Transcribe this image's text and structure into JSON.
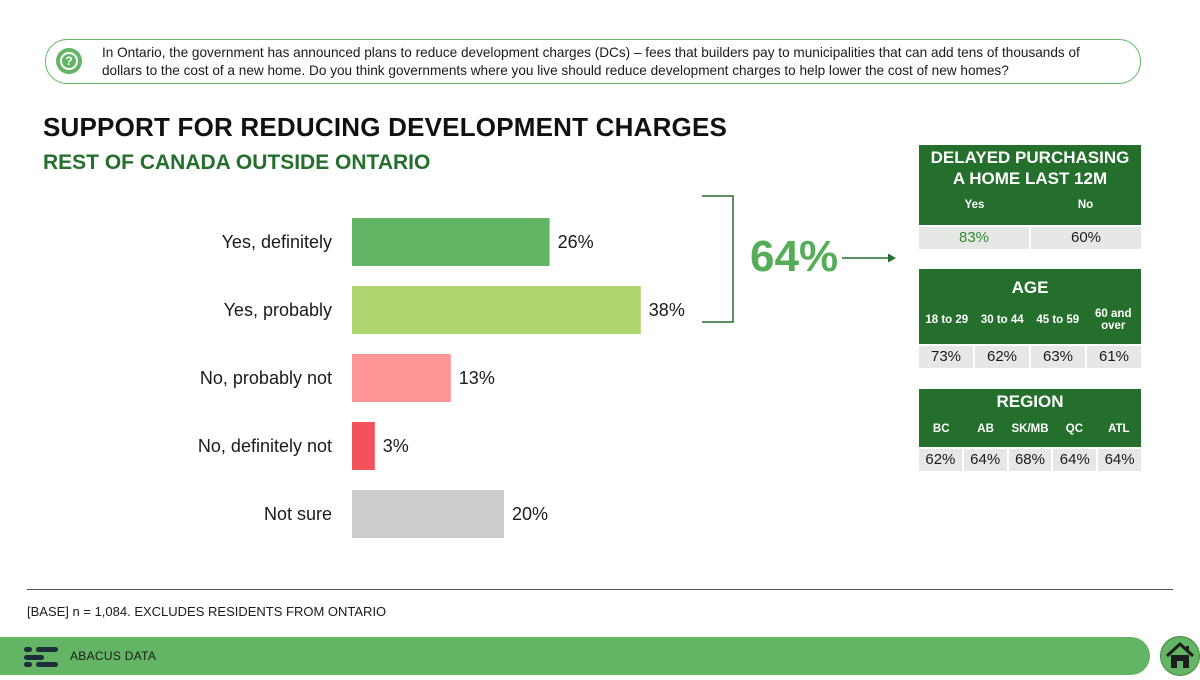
{
  "question": {
    "icon": "question-icon",
    "text": "In Ontario, the government has announced plans to reduce development charges (DCs) – fees that builders pay to municipalities that can add tens of thousands of dollars to the cost of a new home. Do you think governments where you live should reduce development charges to help lower the cost of new homes?"
  },
  "title": "SUPPORT FOR REDUCING DEVELOPMENT CHARGES",
  "subtitle": "REST OF CANADA OUTSIDE ONTARIO",
  "chart_data": {
    "type": "bar",
    "orientation": "horizontal",
    "categories": [
      "Yes, definitely",
      "Yes, probably",
      "No, probably not",
      "No, definitely not",
      "Not sure"
    ],
    "values": [
      26,
      38,
      13,
      3,
      20
    ],
    "value_labels": [
      "26%",
      "38%",
      "13%",
      "3%",
      "20%"
    ],
    "colors": [
      "#63b565",
      "#aed56f",
      "#fe9698",
      "#f4525a",
      "#cbcccb"
    ],
    "unit": "%",
    "xlim": [
      0,
      100
    ],
    "grid": false
  },
  "callout": {
    "value": "64%",
    "arrow_icon": "arrow-right-icon"
  },
  "panels": {
    "delayed": {
      "title_line1": "DELAYED PURCHASING",
      "title_line2": "A HOME LAST 12M",
      "columns": [
        "Yes",
        "No"
      ],
      "values": [
        "83%",
        "60%"
      ],
      "highlight_color": "#2e8a31"
    },
    "age": {
      "title": "AGE",
      "columns": [
        "18 to 29",
        "30 to 44",
        "45 to 59",
        "60 and over"
      ],
      "values": [
        "73%",
        "62%",
        "63%",
        "61%"
      ]
    },
    "region": {
      "title": "REGION",
      "columns": [
        "BC",
        "AB",
        "SK/MB",
        "QC",
        "ATL"
      ],
      "values": [
        "62%",
        "64%",
        "68%",
        "64%",
        "64%"
      ]
    }
  },
  "base_note": "[BASE] n = 1,084. EXCLUDES RESIDENTS FROM ONTARIO",
  "footer": {
    "brand": "ABACUS DATA",
    "home_icon": "home-icon"
  },
  "colors": {
    "accent_green": "#63b565",
    "dark_green": "#256f2c"
  }
}
